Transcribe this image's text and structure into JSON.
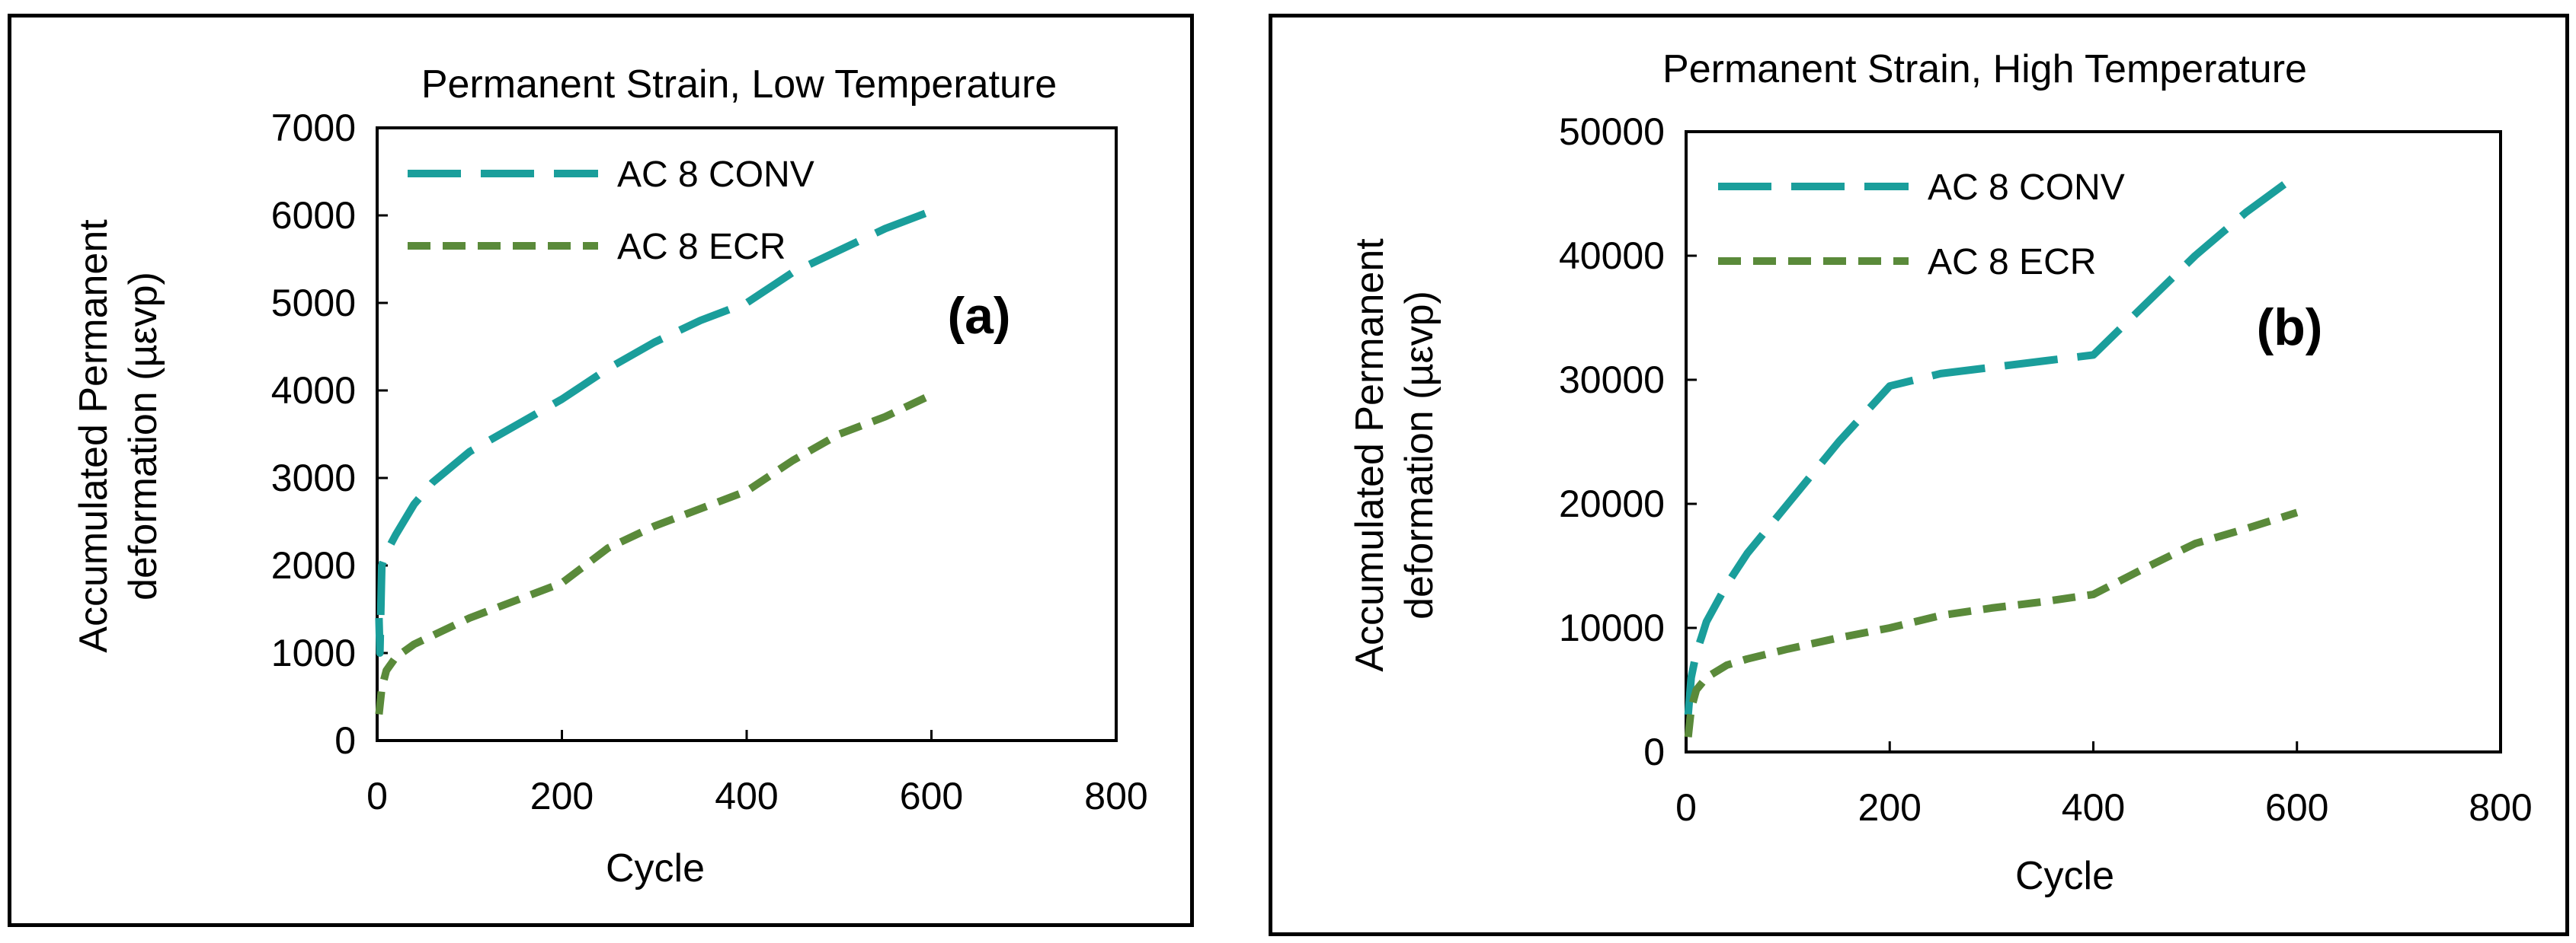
{
  "chart_data": [
    {
      "type": "line",
      "title": "Permanent Strain, Low Temperature",
      "xlabel": "Cycle",
      "ylabel_line1": "Accumulated Permanent",
      "ylabel_line2": "deformation  (µεvp)",
      "panel_tag": "(a)",
      "xlim": [
        0,
        800
      ],
      "ylim": [
        0,
        7000
      ],
      "xticks": [
        "0",
        "200",
        "400",
        "600",
        "800"
      ],
      "yticks": [
        "0",
        "1000",
        "2000",
        "3000",
        "4000",
        "5000",
        "6000",
        "7000"
      ],
      "legend_position": "top-left",
      "series": [
        {
          "name": "AC 8 CONV",
          "color": "#1a9e9b",
          "style": "long-dash",
          "x": [
            2,
            3,
            5,
            10,
            20,
            40,
            60,
            100,
            150,
            200,
            250,
            300,
            350,
            400,
            450,
            500,
            550,
            600
          ],
          "y": [
            1400,
            1000,
            2000,
            2150,
            2350,
            2700,
            2950,
            3300,
            3600,
            3900,
            4250,
            4550,
            4800,
            5000,
            5350,
            5600,
            5850,
            6050
          ]
        },
        {
          "name": "AC 8 ECR",
          "color": "#5a8a3a",
          "style": "short-dash",
          "x": [
            2,
            5,
            10,
            20,
            40,
            60,
            100,
            150,
            200,
            250,
            300,
            350,
            400,
            450,
            500,
            550,
            600
          ],
          "y": [
            300,
            600,
            800,
            950,
            1100,
            1200,
            1400,
            1600,
            1800,
            2200,
            2450,
            2650,
            2850,
            3200,
            3500,
            3700,
            3950
          ]
        }
      ]
    },
    {
      "type": "line",
      "title": "Permanent Strain, High Temperature",
      "xlabel": "Cycle",
      "ylabel_line1": "Accumulated Permanent",
      "ylabel_line2": "deformation  (µεvp)",
      "panel_tag": "(b)",
      "xlim": [
        0,
        800
      ],
      "ylim": [
        0,
        50000
      ],
      "xticks": [
        "0",
        "200",
        "400",
        "600",
        "800"
      ],
      "yticks": [
        "0",
        "10000",
        "20000",
        "30000",
        "40000",
        "50000"
      ],
      "legend_position": "top-left",
      "series": [
        {
          "name": "AC 8 CONV",
          "color": "#1a9e9b",
          "style": "long-dash",
          "x": [
            2,
            5,
            10,
            15,
            20,
            40,
            60,
            100,
            150,
            200,
            250,
            300,
            350,
            400,
            450,
            500,
            550,
            600
          ],
          "y": [
            3000,
            6000,
            8000,
            9200,
            10500,
            13500,
            16000,
            20000,
            25000,
            29500,
            30500,
            31000,
            31500,
            32000,
            36000,
            40000,
            43500,
            46500
          ]
        },
        {
          "name": "AC 8 ECR",
          "color": "#5a8a3a",
          "style": "short-dash",
          "x": [
            2,
            5,
            10,
            20,
            40,
            60,
            100,
            150,
            200,
            250,
            300,
            350,
            400,
            450,
            500,
            550,
            600
          ],
          "y": [
            1200,
            3500,
            5000,
            6000,
            7000,
            7500,
            8300,
            9200,
            10000,
            11000,
            11600,
            12100,
            12700,
            14800,
            16800,
            18000,
            19300
          ]
        }
      ]
    }
  ]
}
